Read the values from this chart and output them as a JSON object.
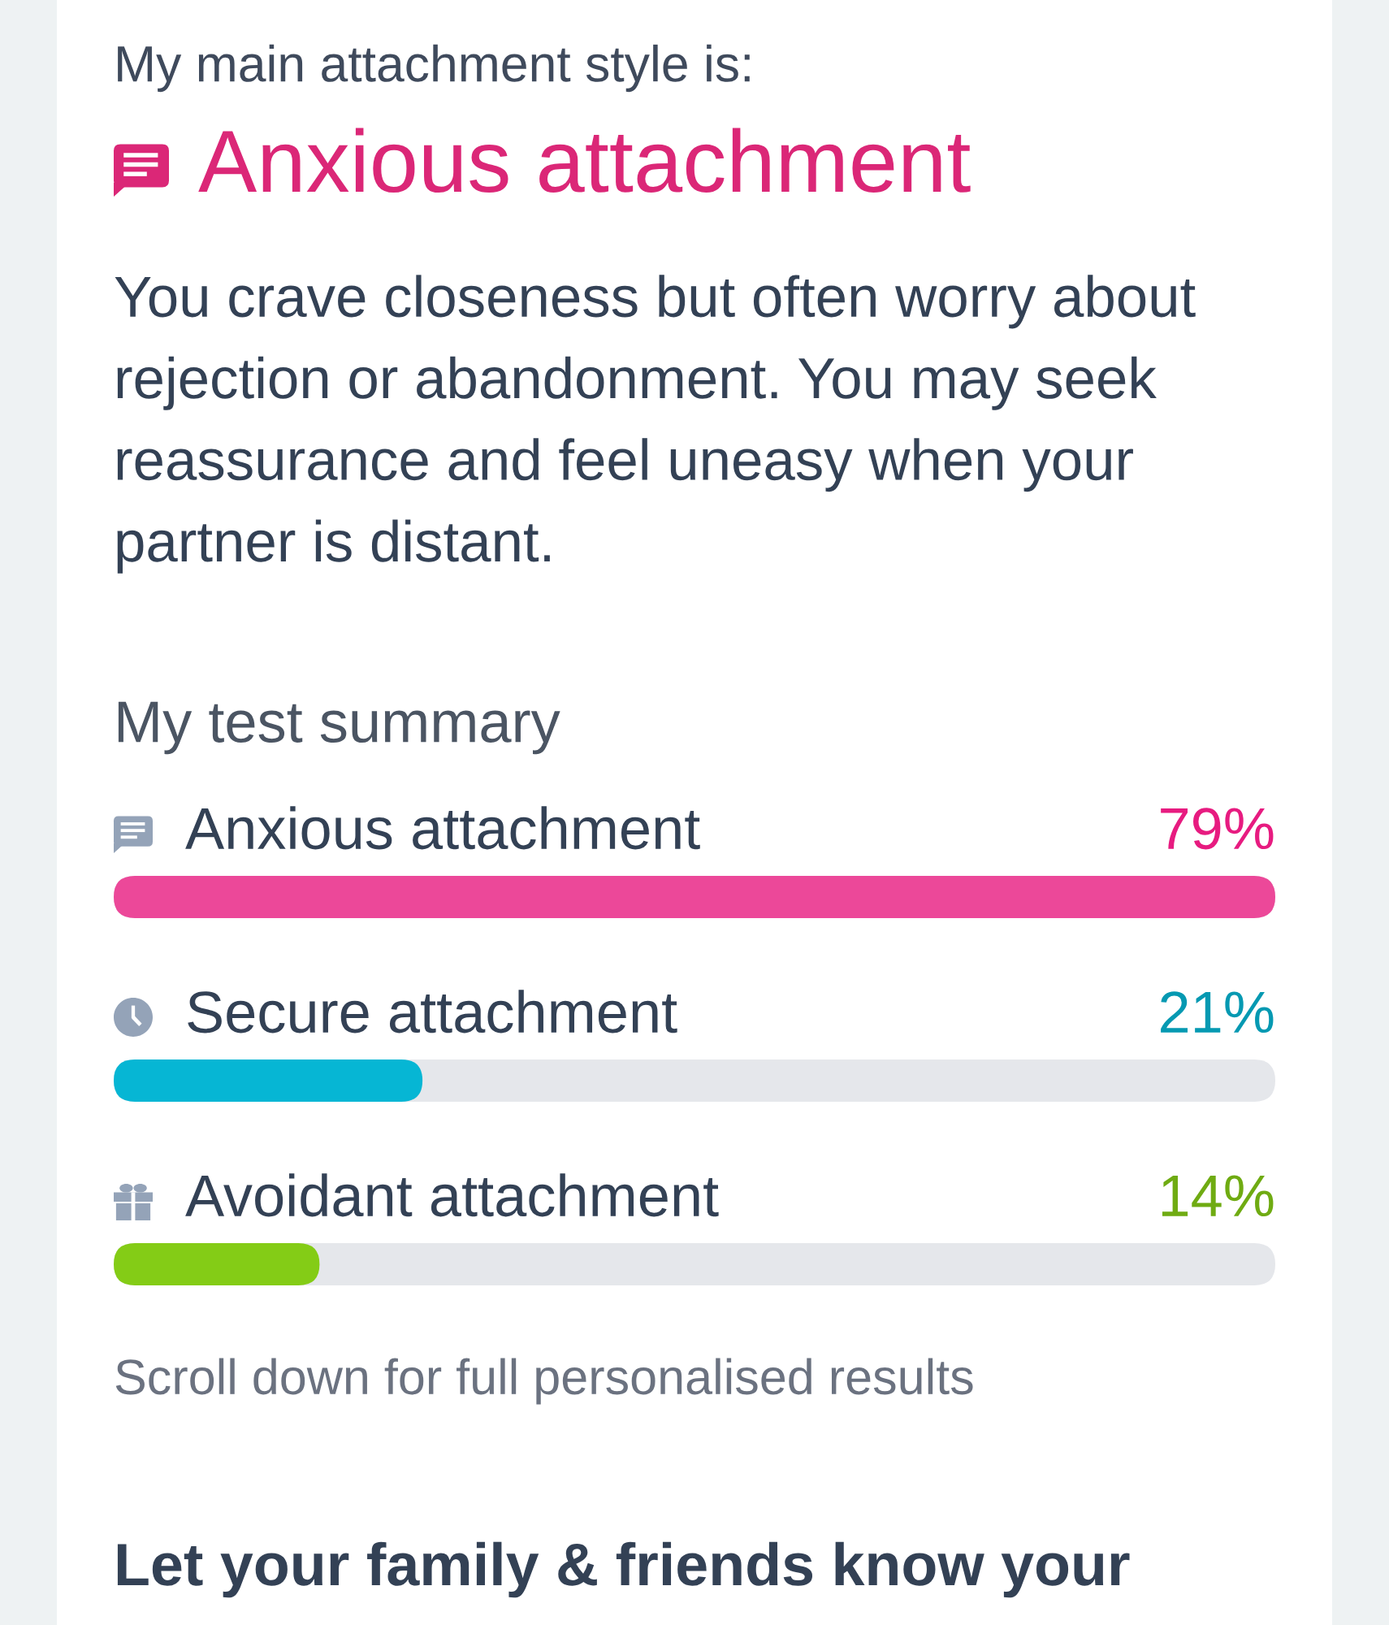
{
  "chart_data": {
    "type": "bar",
    "orientation": "horizontal",
    "title": "My test summary",
    "categories": [
      "Anxious attachment",
      "Secure attachment",
      "Avoidant attachment"
    ],
    "values": [
      79,
      21,
      14
    ],
    "colors": [
      "#ec4899",
      "#06b6d4",
      "#84cc16"
    ],
    "xlim": [
      0,
      79
    ],
    "value_labels": [
      "79%",
      "21%",
      "14%"
    ],
    "tick_labels": false,
    "annotations": [
      "My main attachment style is:",
      "Anxious attachment",
      "You crave closeness but often worry about rejection or abandonment. You may seek reassurance and feel uneasy when your partner is distant.",
      "Scroll down for full personalised results",
      "Let your family & friends know your"
    ]
  }
}
